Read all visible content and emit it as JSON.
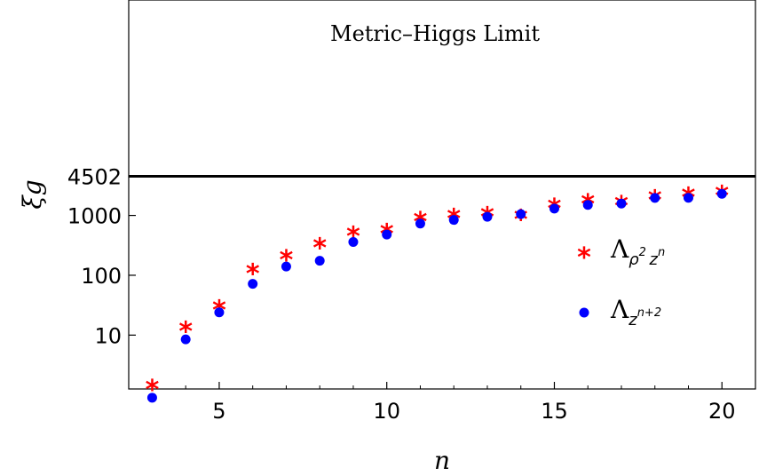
{
  "chart_data": {
    "type": "scatter",
    "xlabel": "n",
    "ylabel": "ξg",
    "xlim": [
      2.3,
      21
    ],
    "ylim": [
      0.1,
      6.6
    ],
    "y_scale": "log10",
    "x_ticks": [
      5,
      10,
      15,
      20
    ],
    "x_tick_labels": [
      "5",
      "10",
      "15",
      "20"
    ],
    "y_ticks": [
      10,
      100,
      1000,
      4502
    ],
    "y_tick_labels": [
      "10",
      "100",
      "1000",
      "4502"
    ],
    "reference_line": {
      "y": 4502,
      "label": "Metric–Higgs Limit",
      "color": "#000000"
    },
    "legend_position": "right-middle",
    "series": [
      {
        "name": "Λρ² zⁿ",
        "legend": {
          "base": "Λ",
          "sub": "ρ",
          "sup": "2",
          "sub2": "z",
          "sup2": "n"
        },
        "marker": "star",
        "color": "#ff0000",
        "x": [
          3,
          4,
          5,
          6,
          7,
          8,
          9,
          10,
          11,
          12,
          13,
          14,
          15,
          16,
          17,
          18,
          19,
          20
        ],
        "y": [
          1.5,
          14,
          32,
          130,
          220,
          350,
          540,
          600,
          960,
          1080,
          1150,
          1030,
          1600,
          1880,
          1760,
          2200,
          2420,
          2600
        ]
      },
      {
        "name": "Λz^(n+2)",
        "legend": {
          "base": "Λ",
          "sub": "z",
          "sup": "n+2"
        },
        "marker": "circle",
        "color": "#0000ff",
        "x": [
          3,
          4,
          5,
          6,
          7,
          8,
          9,
          10,
          11,
          12,
          13,
          14,
          15,
          16,
          17,
          18,
          19,
          20
        ],
        "y": [
          0.9,
          8.5,
          24,
          72,
          140,
          175,
          360,
          480,
          730,
          840,
          950,
          1050,
          1300,
          1500,
          1580,
          1960,
          1970,
          2300
        ]
      }
    ]
  }
}
